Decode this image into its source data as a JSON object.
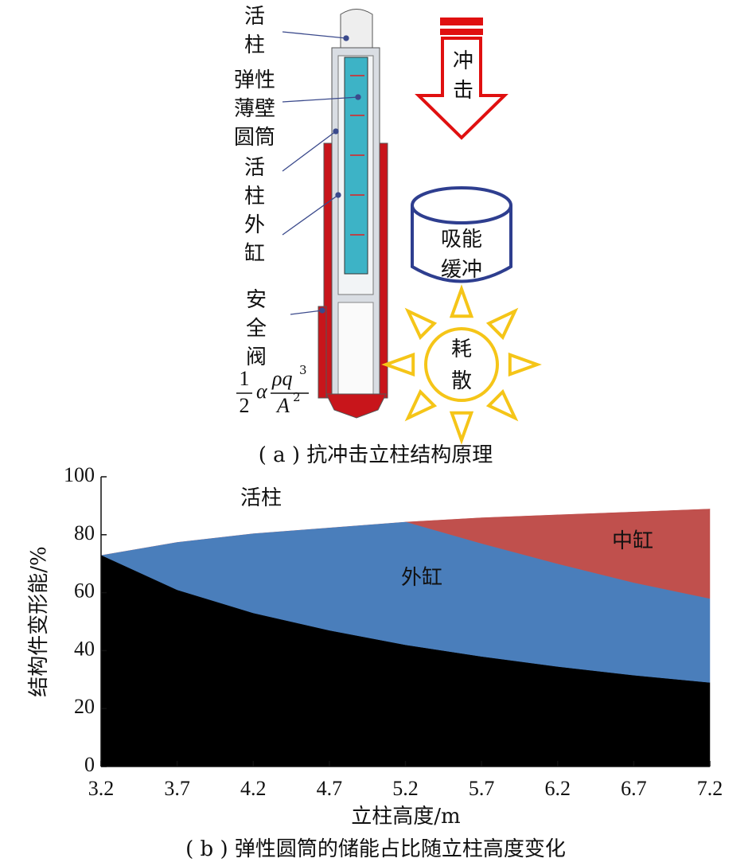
{
  "diagram": {
    "labels": [
      [
        "活",
        "柱"
      ],
      [
        "弹性",
        "薄壁",
        "圆筒"
      ],
      [
        "活",
        "柱",
        "外",
        "缸"
      ],
      [
        "安",
        "全",
        "阀"
      ]
    ],
    "formula": {
      "numerator": "1",
      "denominator": "2",
      "alpha": "α",
      "rho_q": "ρq",
      "rho_q_exp": "3",
      "A": "A",
      "A_exp": "2"
    },
    "impact": [
      "冲",
      "击"
    ],
    "absorb": [
      "吸能",
      "缓冲"
    ],
    "dissipate": [
      "耗",
      "散"
    ],
    "caption": "( a ) 抗冲击立柱结构原理"
  },
  "chart_data": {
    "type": "stacked_area",
    "caption": "( b ) 弹性圆筒的储能占比随立柱高度变化",
    "xlabel": "立柱高度/m",
    "ylabel": "结构件变形能/%",
    "x": [
      3.2,
      3.7,
      4.2,
      4.7,
      5.2,
      5.7,
      6.2,
      6.7,
      7.2
    ],
    "xlim": [
      3.2,
      7.2
    ],
    "xticks": [
      3.2,
      3.7,
      4.2,
      4.7,
      5.2,
      5.7,
      6.2,
      6.7,
      7.2
    ],
    "ylim": [
      0,
      100
    ],
    "yticks": [
      0,
      20,
      40,
      60,
      80,
      100
    ],
    "series": [
      {
        "color": "#000000",
        "values": [
          73,
          61,
          53,
          47,
          42,
          38,
          34.5,
          31.5,
          29
        ]
      },
      {
        "name": "外缸",
        "color": "#4a7ebb",
        "values": [
          0,
          16.5,
          27.5,
          35.5,
          42.5,
          39,
          35.5,
          32,
          29
        ]
      },
      {
        "name": "中缸",
        "color": "#c0504d",
        "values": [
          0,
          0,
          0,
          0,
          0,
          9,
          17,
          24.5,
          31
        ]
      },
      {
        "name": "活柱",
        "color": "#ffffff",
        "values": [
          27,
          22.5,
          19.5,
          17.5,
          15.5,
          14,
          13,
          12,
          11
        ]
      }
    ]
  }
}
